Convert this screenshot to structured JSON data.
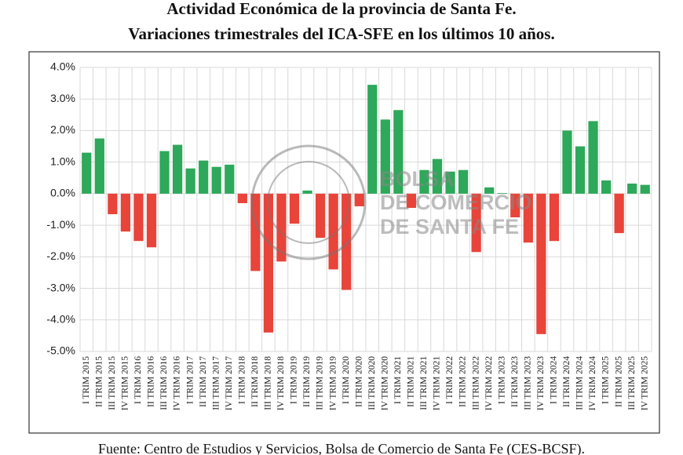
{
  "chart_data": {
    "type": "bar",
    "title": [
      "Actividad Económica de la provincia de Santa Fe.",
      "Variaciones trimestrales del ICA-SFE en los últimos 10 años."
    ],
    "categories": [
      "I TRIM 2015",
      "II TRIM 2015",
      "III TRIM 2015",
      "IV TRIM 2015",
      "I TRIM 2016",
      "II TRIM 2016",
      "III TRIM 2016",
      "IV TRIM 2016",
      "I TRIM 2017",
      "II TRIM 2017",
      "III TRIM 2017",
      "IV TRIM 2017",
      "I TRIM 2018",
      "II TRIM 2018",
      "III TRIM 2018",
      "IV TRIM 2018",
      "I TRIM 2019",
      "II TRIM 2019",
      "III TRIM 2019",
      "IV TRIM 2019",
      "I TRIM 2020",
      "II TRIM 2020",
      "III TRIM 2020",
      "IV TRIM 2020",
      "I TRIM 2021",
      "II TRIM 2021",
      "III TRIM 2021",
      "IV TRIM 2021",
      "I TRIM 2022",
      "II TRIM 2022",
      "III TRIM 2022",
      "IV TRIM 2022",
      "I TRIM 2023",
      "II TRIM 2023",
      "III TRIM 2023",
      "IV TRIM 2023",
      "I TRIM 2024",
      "II TRIM 2024",
      "III TRIM 2024",
      "IV TRIM 2024",
      "I TRIM 2025",
      "II TRIM 2025",
      "III TRIM 2025",
      "IV TRIM 2025"
    ],
    "values": [
      1.3,
      1.75,
      -0.65,
      -1.2,
      -1.5,
      -1.7,
      1.35,
      1.55,
      0.8,
      1.05,
      0.85,
      0.92,
      -0.3,
      -2.45,
      -4.4,
      -2.15,
      -0.95,
      0.1,
      -1.4,
      -2.4,
      -3.05,
      -0.4,
      3.45,
      2.35,
      2.65,
      -0.45,
      0.75,
      1.1,
      0.7,
      0.75,
      -1.85,
      0.2,
      0.02,
      -0.75,
      -1.55,
      -4.45,
      -1.5,
      2.0,
      1.5,
      2.3,
      0.42,
      -1.25,
      0.32,
      0.28
    ],
    "positive_color": "#2ea85a",
    "negative_color": "#e8443a",
    "ylim": [
      -5,
      4
    ],
    "yticks": [
      {
        "value": -5,
        "label": "-5.0%"
      },
      {
        "value": -4,
        "label": "-4.0%"
      },
      {
        "value": -3,
        "label": "-3.0%"
      },
      {
        "value": -2,
        "label": "-2.0%"
      },
      {
        "value": -1,
        "label": "-1.0%"
      },
      {
        "value": 0,
        "label": "0.0%"
      },
      {
        "value": 1,
        "label": "1.0%"
      },
      {
        "value": 2,
        "label": "2.0%"
      },
      {
        "value": 3,
        "label": "3.0%"
      },
      {
        "value": 4,
        "label": "4.0%"
      }
    ],
    "grid": true,
    "watermark": [
      "BOLSA",
      "DE COMERCIO",
      "DE SANTA FE"
    ],
    "source": "Fuente: Centro de Estudios y Servicios, Bolsa de Comercio de Santa Fe (CES-BCSF)."
  }
}
